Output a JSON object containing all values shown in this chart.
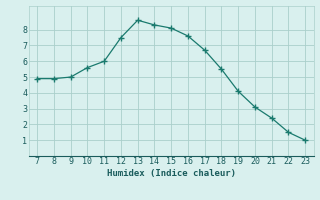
{
  "x": [
    7,
    8,
    9,
    10,
    11,
    12,
    13,
    14,
    15,
    16,
    17,
    18,
    19,
    20,
    21,
    22,
    23
  ],
  "y": [
    4.9,
    4.9,
    5.0,
    5.6,
    6.0,
    7.5,
    8.6,
    8.3,
    8.1,
    7.6,
    6.7,
    5.5,
    4.1,
    3.1,
    2.4,
    1.5,
    1.0
  ],
  "xlabel": "Humidex (Indice chaleur)",
  "xlim": [
    6.5,
    23.5
  ],
  "ylim": [
    0,
    9.5
  ],
  "yticks": [
    1,
    2,
    3,
    4,
    5,
    6,
    7,
    8
  ],
  "xticks": [
    7,
    8,
    9,
    10,
    11,
    12,
    13,
    14,
    15,
    16,
    17,
    18,
    19,
    20,
    21,
    22,
    23
  ],
  "line_color": "#1a7a6e",
  "marker": "+",
  "marker_size": 4,
  "marker_linewidth": 1.0,
  "bg_color": "#d9f0ee",
  "grid_color": "#aacfcb",
  "font_color": "#1a5c5c",
  "xlabel_fontsize": 6.5,
  "tick_fontsize": 6
}
